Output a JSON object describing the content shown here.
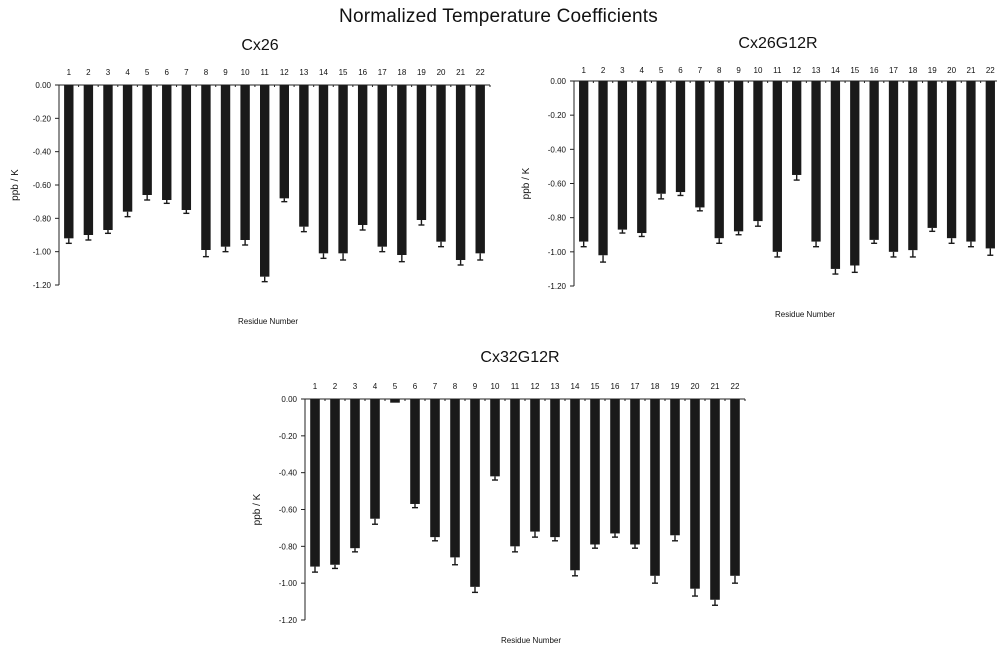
{
  "title": "Normalized Temperature Coefficients",
  "chart_data": [
    {
      "type": "bar",
      "title": "Cx26",
      "xlabel": "Residue Number",
      "ylabel": "ppb / K",
      "ylim": [
        -1.2,
        0
      ],
      "yticks": [
        "0.00",
        "-0.20",
        "-0.40",
        "-0.60",
        "-0.80",
        "-1.00",
        "-1.20"
      ],
      "categories": [
        "1",
        "2",
        "3",
        "4",
        "5",
        "6",
        "7",
        "8",
        "9",
        "10",
        "11",
        "12",
        "13",
        "14",
        "15",
        "16",
        "17",
        "18",
        "19",
        "20",
        "21",
        "22"
      ],
      "values": [
        -0.92,
        -0.9,
        -0.87,
        -0.76,
        -0.66,
        -0.69,
        -0.75,
        -0.99,
        -0.97,
        -0.93,
        -1.15,
        -0.68,
        -0.85,
        -1.01,
        -1.01,
        -0.84,
        -0.97,
        -1.02,
        -0.81,
        -0.94,
        -1.05,
        -1.01
      ],
      "errors": [
        0.03,
        0.03,
        0.02,
        0.03,
        0.03,
        0.02,
        0.02,
        0.04,
        0.03,
        0.03,
        0.03,
        0.02,
        0.03,
        0.03,
        0.04,
        0.03,
        0.03,
        0.04,
        0.03,
        0.03,
        0.03,
        0.04
      ],
      "bar_color": "#1a1a1a",
      "grid": false
    },
    {
      "type": "bar",
      "title": "Cx26G12R",
      "xlabel": "Residue Number",
      "ylabel": "ppb / K",
      "ylim": [
        -1.2,
        0
      ],
      "yticks": [
        "0.00",
        "-0.20",
        "-0.40",
        "-0.60",
        "-0.80",
        "-1.00",
        "-1.20"
      ],
      "categories": [
        "1",
        "2",
        "3",
        "4",
        "5",
        "6",
        "7",
        "8",
        "9",
        "10",
        "11",
        "12",
        "13",
        "14",
        "15",
        "16",
        "17",
        "18",
        "19",
        "20",
        "21",
        "22"
      ],
      "values": [
        -0.94,
        -1.02,
        -0.87,
        -0.89,
        -0.66,
        -0.65,
        -0.74,
        -0.92,
        -0.88,
        -0.82,
        -1.0,
        -0.55,
        -0.94,
        -1.1,
        -1.08,
        -0.93,
        -1.0,
        -0.99,
        -0.86,
        -0.92,
        -0.94,
        -0.98
      ],
      "errors": [
        0.03,
        0.04,
        0.02,
        0.02,
        0.03,
        0.02,
        0.02,
        0.03,
        0.02,
        0.03,
        0.03,
        0.03,
        0.03,
        0.03,
        0.04,
        0.02,
        0.03,
        0.04,
        0.02,
        0.03,
        0.03,
        0.04
      ],
      "bar_color": "#1a1a1a",
      "grid": false
    },
    {
      "type": "bar",
      "title": "Cx32G12R",
      "xlabel": "Residue Number",
      "ylabel": "ppb / K",
      "ylim": [
        -1.2,
        0
      ],
      "yticks": [
        "0.00",
        "-0.20",
        "-0.40",
        "-0.60",
        "-0.80",
        "-1.00",
        "-1.20"
      ],
      "categories": [
        "1",
        "2",
        "3",
        "4",
        "5",
        "6",
        "7",
        "8",
        "9",
        "10",
        "11",
        "12",
        "13",
        "14",
        "15",
        "16",
        "17",
        "18",
        "19",
        "20",
        "21",
        "22"
      ],
      "values": [
        -0.91,
        -0.9,
        -0.81,
        -0.65,
        -0.02,
        -0.57,
        -0.75,
        -0.86,
        -1.02,
        -0.42,
        -0.8,
        -0.72,
        -0.75,
        -0.93,
        -0.79,
        -0.73,
        -0.79,
        -0.96,
        -0.74,
        -1.03,
        -1.09,
        -0.96
      ],
      "errors": [
        0.03,
        0.02,
        0.02,
        0.03,
        0.0,
        0.02,
        0.02,
        0.04,
        0.03,
        0.02,
        0.03,
        0.03,
        0.02,
        0.03,
        0.02,
        0.02,
        0.02,
        0.04,
        0.03,
        0.04,
        0.03,
        0.04
      ],
      "bar_color": "#1a1a1a",
      "grid": false
    }
  ]
}
